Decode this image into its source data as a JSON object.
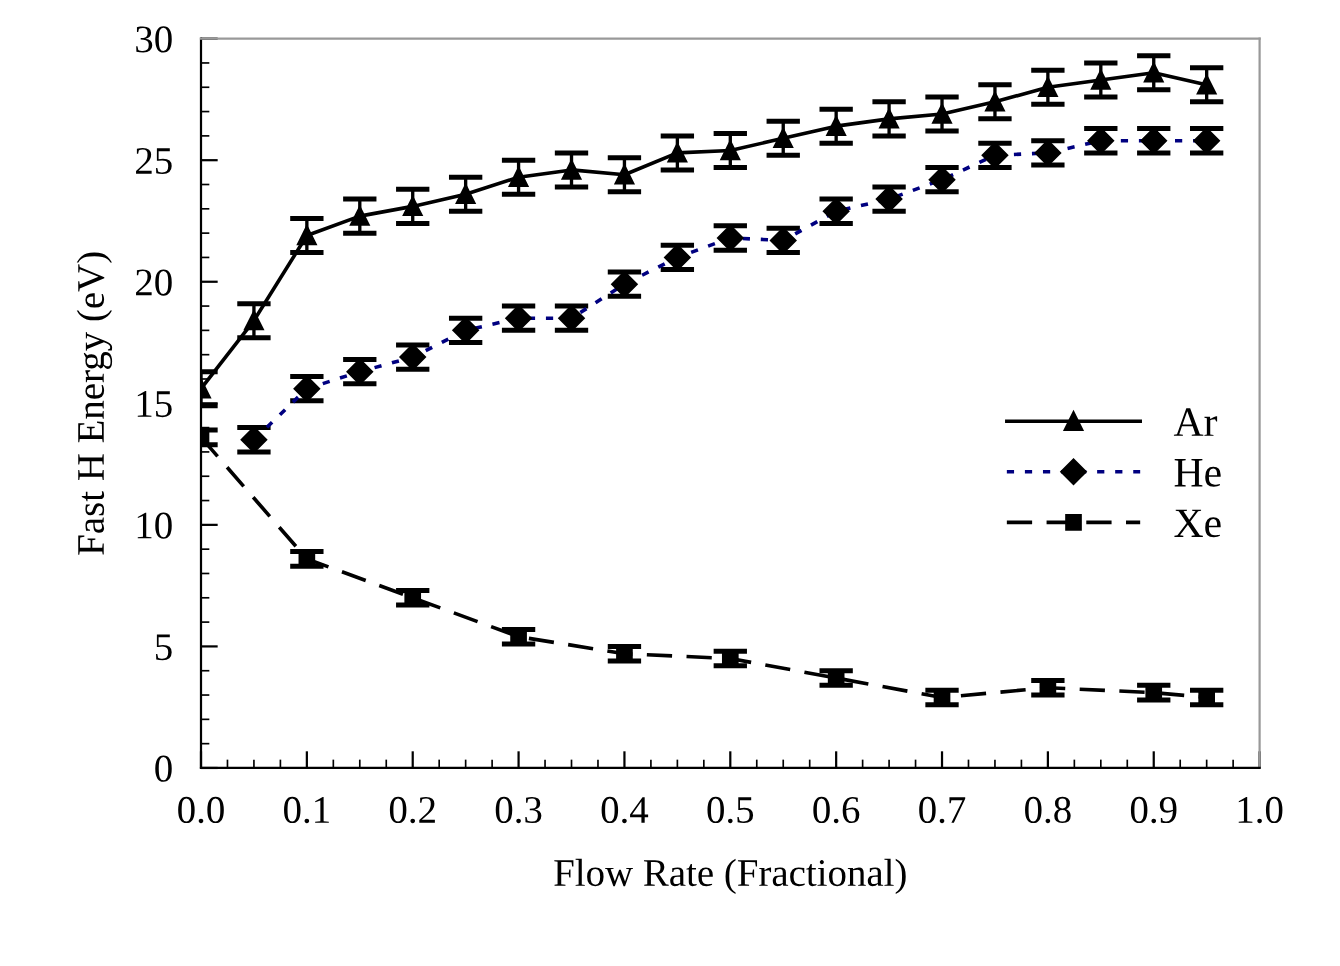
{
  "chart_data": {
    "type": "line",
    "xlabel": "Flow Rate (Fractional)",
    "ylabel": "Fast H Energy (eV)",
    "xlim": [
      0,
      1
    ],
    "xticks": [
      {
        "value": 0,
        "label": "0.0"
      },
      0.1,
      0.2,
      0.3,
      0.4,
      0.5,
      0.6,
      0.7,
      0.8,
      0.9,
      {
        "value": 1,
        "label": "1.0"
      }
    ],
    "ylim": [
      0,
      30
    ],
    "yticks": [
      0,
      5,
      10,
      15,
      20,
      25,
      30
    ],
    "grid": false,
    "legend": "right",
    "series": [
      {
        "name": "Ar",
        "color": "#000000",
        "marker": "triangle",
        "line_style": "solid",
        "x": [
          0,
          0.05,
          0.1,
          0.15,
          0.2,
          0.25,
          0.3,
          0.35,
          0.4,
          0.45,
          0.5,
          0.55,
          0.6,
          0.65,
          0.7,
          0.75,
          0.8,
          0.85,
          0.9,
          0.95
        ],
        "values": [
          15.6,
          18.4,
          21.9,
          22.7,
          23.1,
          23.6,
          24.3,
          24.6,
          24.4,
          25.3,
          25.4,
          25.9,
          26.4,
          26.7,
          26.9,
          27.4,
          28.0,
          28.3,
          28.6,
          28.1
        ],
        "errors": [
          0.7,
          0.7,
          0.7,
          0.7,
          0.7,
          0.7,
          0.7,
          0.7,
          0.7,
          0.7,
          0.7,
          0.7,
          0.7,
          0.7,
          0.7,
          0.7,
          0.7,
          0.7,
          0.7,
          0.7
        ]
      },
      {
        "name": "He",
        "color": "#000080",
        "marker": "diamond",
        "line_style": "dotted",
        "x": [
          0.05,
          0.1,
          0.15,
          0.2,
          0.25,
          0.3,
          0.35,
          0.4,
          0.45,
          0.5,
          0.55,
          0.6,
          0.65,
          0.7,
          0.75,
          0.8,
          0.85,
          0.9,
          0.95
        ],
        "values": [
          13.5,
          15.6,
          16.3,
          16.9,
          18.0,
          18.5,
          18.5,
          19.9,
          21.0,
          21.8,
          21.7,
          22.9,
          23.4,
          24.2,
          25.2,
          25.3,
          25.8,
          25.8,
          25.8
        ],
        "errors": [
          0.5,
          0.5,
          0.5,
          0.5,
          0.5,
          0.5,
          0.5,
          0.5,
          0.5,
          0.5,
          0.5,
          0.5,
          0.5,
          0.5,
          0.5,
          0.5,
          0.5,
          0.5,
          0.5
        ]
      },
      {
        "name": "Xe",
        "color": "#000000",
        "marker": "square",
        "line_style": "dashed",
        "x": [
          0,
          0.1,
          0.2,
          0.3,
          0.4,
          0.5,
          0.6,
          0.7,
          0.8,
          0.9,
          0.95
        ],
        "values": [
          13.6,
          8.6,
          7.0,
          5.4,
          4.7,
          4.5,
          3.7,
          2.9,
          3.3,
          3.1,
          2.9
        ],
        "errors": [
          0.3,
          0.3,
          0.3,
          0.3,
          0.3,
          0.3,
          0.3,
          0.3,
          0.3,
          0.3,
          0.3
        ]
      }
    ]
  }
}
